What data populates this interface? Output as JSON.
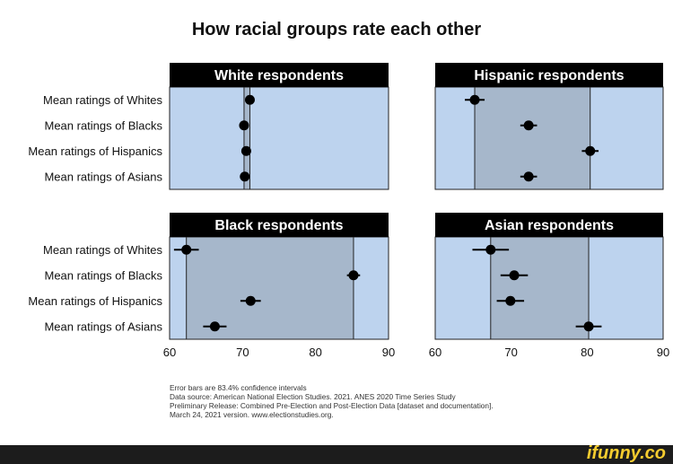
{
  "chart_data": {
    "type": "scatter",
    "title": "How racial groups rate each other",
    "row_labels": [
      "Mean ratings of Whites",
      "Mean ratings of Blacks",
      "Mean ratings of Hispanics",
      "Mean ratings of Asians"
    ],
    "xlim": [
      60,
      90
    ],
    "xticks": [
      "60",
      "70",
      "80",
      "90"
    ],
    "panels": [
      {
        "title": "White respondents",
        "points": [
          {
            "x": 71.0,
            "lo": 70.5,
            "hi": 71.5
          },
          {
            "x": 70.2,
            "lo": 69.8,
            "hi": 70.6
          },
          {
            "x": 70.5,
            "lo": 70.1,
            "hi": 70.9
          },
          {
            "x": 70.3,
            "lo": 69.9,
            "hi": 70.7
          }
        ]
      },
      {
        "title": "Hispanic respondents",
        "points": [
          {
            "x": 65.2,
            "lo": 63.9,
            "hi": 66.5
          },
          {
            "x": 72.3,
            "lo": 71.2,
            "hi": 73.4
          },
          {
            "x": 80.4,
            "lo": 79.3,
            "hi": 81.5
          },
          {
            "x": 72.3,
            "lo": 71.2,
            "hi": 73.4
          }
        ]
      },
      {
        "title": "Black respondents",
        "points": [
          {
            "x": 62.3,
            "lo": 60.6,
            "hi": 64.0
          },
          {
            "x": 85.2,
            "lo": 84.3,
            "hi": 86.1
          },
          {
            "x": 71.1,
            "lo": 69.7,
            "hi": 72.5
          },
          {
            "x": 66.2,
            "lo": 64.6,
            "hi": 67.8
          }
        ]
      },
      {
        "title": "Asian respondents",
        "points": [
          {
            "x": 67.3,
            "lo": 64.9,
            "hi": 69.7
          },
          {
            "x": 70.4,
            "lo": 68.6,
            "hi": 72.2
          },
          {
            "x": 69.9,
            "lo": 68.1,
            "hi": 71.7
          },
          {
            "x": 80.2,
            "lo": 78.5,
            "hi": 81.9
          }
        ]
      }
    ],
    "colors": {
      "panel_bg": "#bdd3ee",
      "range_band": "#a6b7cb",
      "header_bg": "#000000",
      "header_text": "#ffffff",
      "marker": "#000000"
    },
    "grid": false
  },
  "notes": [
    "Error bars are 83.4% confidence intervals",
    "Data source: American National Election Studies. 2021. ANES 2020 Time Series Study",
    "Preliminary Release: Combined Pre-Election and Post-Election Data [dataset and documentation].",
    "March 24, 2021 version. www.electionstudies.org."
  ],
  "watermark": "ifunny.co"
}
